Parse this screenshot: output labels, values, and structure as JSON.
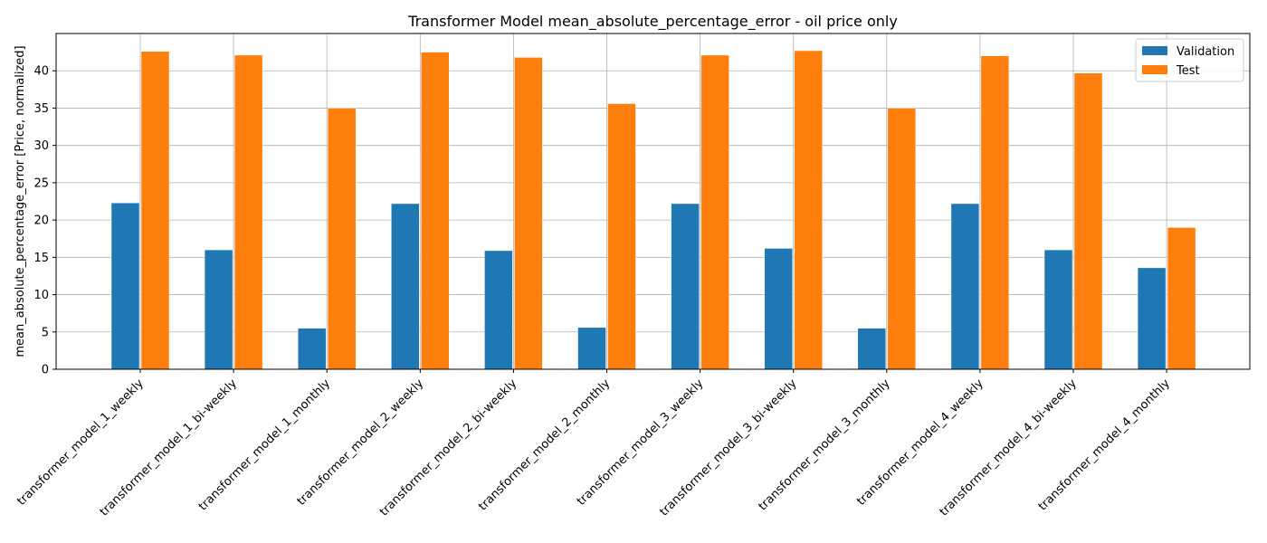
{
  "chart_data": {
    "type": "bar",
    "title": "Transformer Model mean_absolute_percentage_error - oil price only",
    "xlabel": "",
    "ylabel": "mean_absolute_percentage_error [Price, normalized]",
    "ylim": [
      0,
      45
    ],
    "yticks": [
      0,
      5,
      10,
      15,
      20,
      25,
      30,
      35,
      40
    ],
    "grid": true,
    "legend_position": "top-right",
    "categories": [
      "transformer_model_1_weekly",
      "transformer_model_1_bi-weekly",
      "transformer_model_1_monthly",
      "transformer_model_2_weekly",
      "transformer_model_2_bi-weekly",
      "transformer_model_2_monthly",
      "transformer_model_3_weekly",
      "transformer_model_3_bi-weekly",
      "transformer_model_3_monthly",
      "transformer_model_4_weekly",
      "transformer_model_4_bi-weekly",
      "transformer_model_4_monthly"
    ],
    "series": [
      {
        "name": "Validation",
        "color": "#1f77b4",
        "values": [
          22.3,
          16.0,
          5.5,
          22.2,
          15.9,
          5.6,
          22.2,
          16.2,
          5.5,
          22.2,
          16.0,
          13.6
        ]
      },
      {
        "name": "Test",
        "color": "#ff7f0e",
        "values": [
          42.6,
          42.1,
          35.0,
          42.5,
          41.8,
          35.6,
          42.1,
          42.7,
          35.0,
          42.0,
          39.7,
          19.0
        ]
      }
    ]
  }
}
